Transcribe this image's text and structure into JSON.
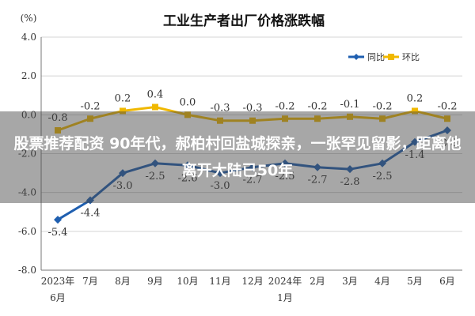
{
  "chart_data": {
    "type": "line",
    "title": "工业生产者出厂价格涨跌幅",
    "y_unit": "(%)",
    "ylim": [
      -8.0,
      4.0
    ],
    "y_ticks": [
      "4.0",
      "2.0",
      "0.0",
      "-2.0",
      "-4.0",
      "-6.0",
      "-8.0"
    ],
    "grid": "horizontal",
    "legend_position": "top-right",
    "categories": [
      {
        "line1": "2023年",
        "line2": "6月"
      },
      {
        "line1": "7月",
        "line2": ""
      },
      {
        "line1": "8月",
        "line2": ""
      },
      {
        "line1": "9月",
        "line2": ""
      },
      {
        "line1": "10月",
        "line2": ""
      },
      {
        "line1": "11月",
        "line2": ""
      },
      {
        "line1": "12月",
        "line2": ""
      },
      {
        "line1": "2024年",
        "line2": "1月"
      },
      {
        "line1": "2月",
        "line2": ""
      },
      {
        "line1": "3月",
        "line2": ""
      },
      {
        "line1": "4月",
        "line2": ""
      },
      {
        "line1": "5月",
        "line2": ""
      },
      {
        "line1": "6月",
        "line2": ""
      }
    ],
    "series": [
      {
        "name": "同比",
        "color": "#1f5fb0",
        "marker": "diamond",
        "values": [
          -5.4,
          -4.4,
          -3.0,
          -2.5,
          -2.6,
          -3.0,
          -2.7,
          -2.5,
          -2.7,
          -2.8,
          -2.5,
          -1.4,
          -0.8
        ],
        "labels": [
          "-5.4",
          "-4.4",
          "-3.0",
          "-2.5",
          "-2.6",
          "-3.0",
          "-2.7",
          "-2.5",
          "-2.7",
          "-2.8",
          "-2.5",
          "-1.4",
          "-0.8"
        ]
      },
      {
        "name": "环比",
        "color": "#f0b800",
        "marker": "square",
        "values": [
          -0.8,
          -0.2,
          0.2,
          0.4,
          0.0,
          -0.3,
          -0.3,
          -0.2,
          -0.2,
          -0.1,
          -0.2,
          0.2,
          -0.2
        ],
        "labels": [
          "-0.8",
          "-0.2",
          "0.2",
          "0.4",
          "0.0",
          "-0.3",
          "-0.3",
          "-0.2",
          "-0.2",
          "-0.1",
          "-0.2",
          "0.2",
          "-0.2"
        ]
      }
    ]
  },
  "banner": {
    "text": "股票推荐配资 90年代，郝柏村回盐城探亲，一张罕见留影，距离他离开大陆已50年",
    "background": "rgba(72,72,72,0.48)"
  }
}
